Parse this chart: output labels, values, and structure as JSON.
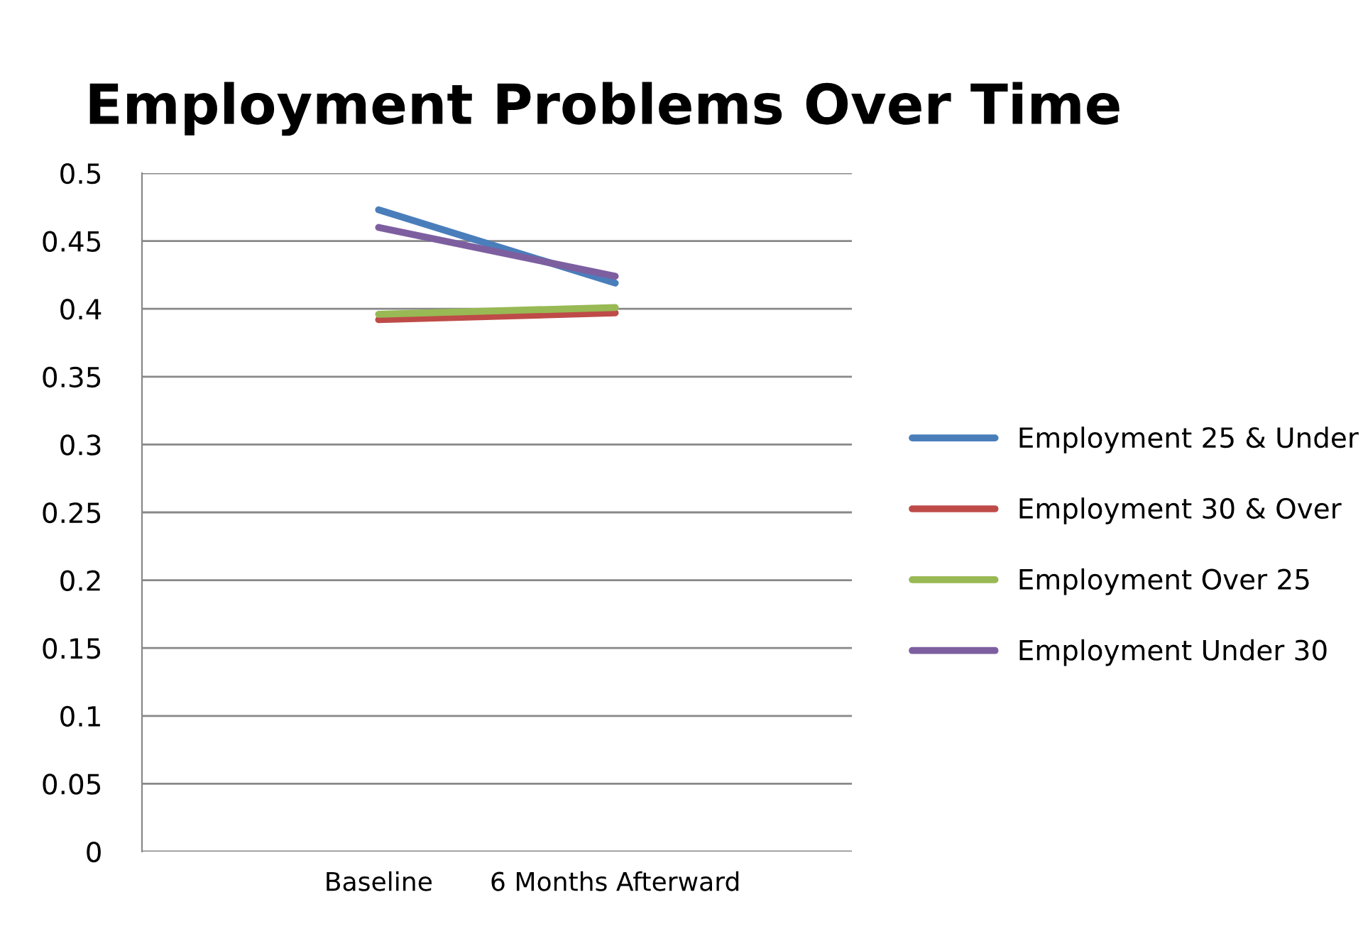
{
  "chart_data": {
    "type": "line",
    "title": "Employment Problems Over Time",
    "categories": [
      "Baseline",
      "6 Months Afterward"
    ],
    "series": [
      {
        "name": "Employment 25 & Under",
        "color": "#4a7ebb",
        "values": [
          0.473,
          0.419
        ]
      },
      {
        "name": "Employment 30 & Over",
        "color": "#be4b48",
        "values": [
          0.392,
          0.397
        ]
      },
      {
        "name": "Employment Over 25",
        "color": "#98b954",
        "values": [
          0.396,
          0.401
        ]
      },
      {
        "name": "Employment Under 30",
        "color": "#7d5fa0",
        "values": [
          0.46,
          0.424
        ]
      }
    ],
    "ylim": [
      0,
      0.5
    ],
    "yticks": [
      0,
      0.05,
      0.1,
      0.15,
      0.2,
      0.25,
      0.3,
      0.35,
      0.4,
      0.45,
      0.5
    ],
    "grid": "y",
    "legend": "right"
  }
}
